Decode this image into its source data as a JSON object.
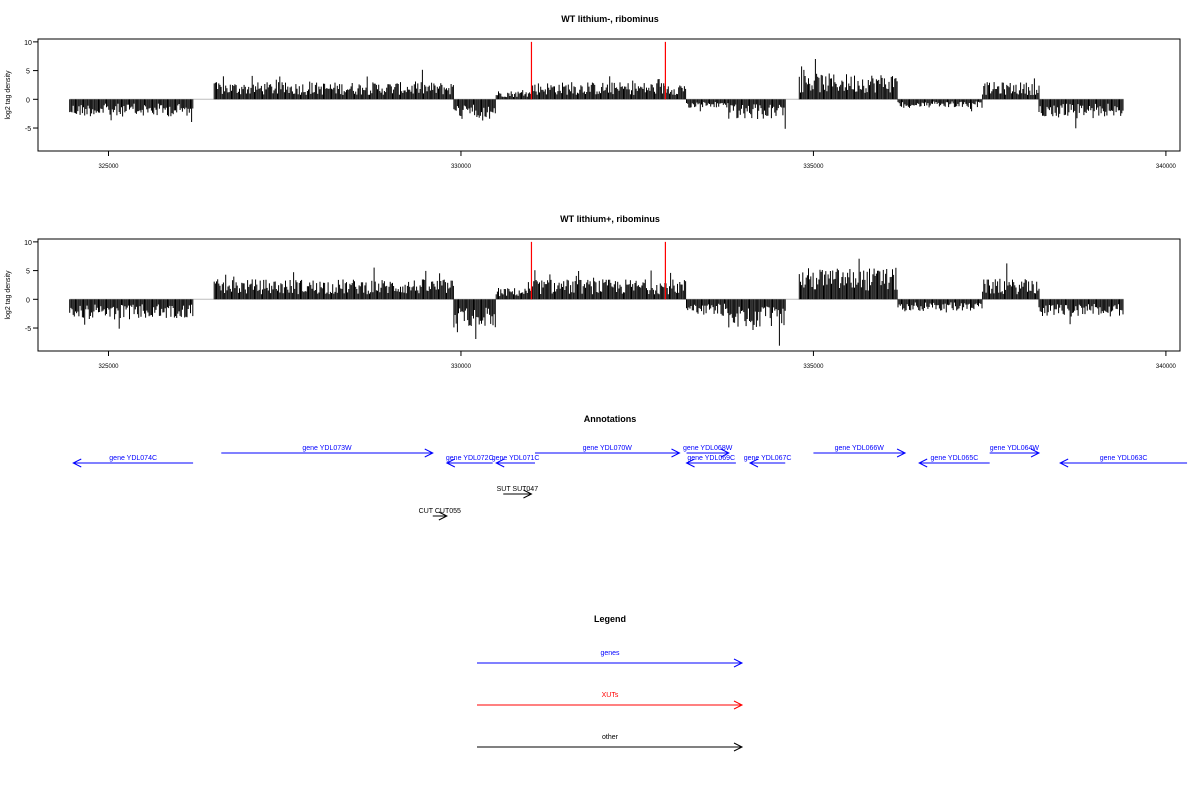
{
  "colors": {
    "genes": "#0000ff",
    "xuts": "#ff0000",
    "other": "#000000",
    "baseline": "#bebebe",
    "axis": "#000000"
  },
  "chart_data": [
    {
      "type": "bar",
      "title": "WT lithium-, ribominus",
      "ylabel": "log2 tag density",
      "xlabel": "",
      "xlim": [
        324000,
        340200
      ],
      "ylim": [
        -9,
        10.5
      ],
      "xticks": [
        325000,
        330000,
        335000,
        340000
      ],
      "yticks": [
        -5,
        0,
        5,
        10
      ],
      "data_range": [
        324450,
        339400
      ],
      "segments": [
        {
          "start": 324450,
          "end": 326200,
          "sign": -1,
          "amp": 3.0
        },
        {
          "start": 326500,
          "end": 329900,
          "sign": 1,
          "amp": 3.0
        },
        {
          "start": 329900,
          "end": 330500,
          "sign": -1,
          "amp": 3.5
        },
        {
          "start": 330500,
          "end": 331000,
          "sign": 1,
          "amp": 1.5
        },
        {
          "start": 331000,
          "end": 333200,
          "sign": 1,
          "amp": 3.0
        },
        {
          "start": 333200,
          "end": 333800,
          "sign": -1,
          "amp": 1.5
        },
        {
          "start": 333800,
          "end": 334600,
          "sign": -1,
          "amp": 3.5
        },
        {
          "start": 334800,
          "end": 336200,
          "sign": 1,
          "amp": 4.5
        },
        {
          "start": 336200,
          "end": 337400,
          "sign": -1,
          "amp": 1.5
        },
        {
          "start": 337400,
          "end": 338200,
          "sign": 1,
          "amp": 3.0
        },
        {
          "start": 338200,
          "end": 339400,
          "sign": -1,
          "amp": 3.0
        }
      ],
      "xut_markers": [
        331000,
        332900
      ],
      "marker_ylim": [
        0,
        10
      ]
    },
    {
      "type": "bar",
      "title": "WT lithium+, ribominus",
      "ylabel": "log2 tag density",
      "xlabel": "",
      "xlim": [
        324000,
        340200
      ],
      "ylim": [
        -9,
        10.5
      ],
      "xticks": [
        325000,
        330000,
        335000,
        340000
      ],
      "yticks": [
        -5,
        0,
        5,
        10
      ],
      "data_range": [
        324450,
        339400
      ],
      "segments": [
        {
          "start": 324450,
          "end": 326200,
          "sign": -1,
          "amp": 3.5
        },
        {
          "start": 326500,
          "end": 329900,
          "sign": 1,
          "amp": 3.5
        },
        {
          "start": 329900,
          "end": 330500,
          "sign": -1,
          "amp": 5.0
        },
        {
          "start": 330500,
          "end": 331000,
          "sign": 1,
          "amp": 2.0
        },
        {
          "start": 331000,
          "end": 333200,
          "sign": 1,
          "amp": 3.5
        },
        {
          "start": 333200,
          "end": 333800,
          "sign": -1,
          "amp": 3.0
        },
        {
          "start": 333800,
          "end": 334600,
          "sign": -1,
          "amp": 5.0
        },
        {
          "start": 334800,
          "end": 336200,
          "sign": 1,
          "amp": 5.5
        },
        {
          "start": 336200,
          "end": 337400,
          "sign": -1,
          "amp": 2.0
        },
        {
          "start": 337400,
          "end": 338200,
          "sign": 1,
          "amp": 3.5
        },
        {
          "start": 338200,
          "end": 339400,
          "sign": -1,
          "amp": 3.0
        }
      ],
      "xut_markers": [
        331000,
        332900
      ],
      "marker_ylim": [
        0,
        10
      ]
    }
  ],
  "annotations": {
    "title": "Annotations",
    "xlim": [
      324000,
      340200
    ],
    "features": [
      {
        "label": "gene YDL074C",
        "start": 324500,
        "end": 326200,
        "strand": "-",
        "category": "genes",
        "row": 2
      },
      {
        "label": "gene YDL073W",
        "start": 326600,
        "end": 329600,
        "strand": "+",
        "category": "genes",
        "row": 1
      },
      {
        "label": "gene YDL072C",
        "start": 329800,
        "end": 330450,
        "strand": "-",
        "category": "genes",
        "row": 2
      },
      {
        "label": "gene YDL071C",
        "start": 330500,
        "end": 331050,
        "strand": "-",
        "category": "genes",
        "row": 2
      },
      {
        "label": "gene YDL070W",
        "start": 331050,
        "end": 333100,
        "strand": "+",
        "category": "genes",
        "row": 1
      },
      {
        "label": "gene YDL068W",
        "start": 333200,
        "end": 333800,
        "strand": "+",
        "category": "genes",
        "row": 1
      },
      {
        "label": "gene YDL069C",
        "start": 333200,
        "end": 333900,
        "strand": "-",
        "category": "genes",
        "row": 2
      },
      {
        "label": "gene YDL067C",
        "start": 334100,
        "end": 334600,
        "strand": "-",
        "category": "genes",
        "row": 2
      },
      {
        "label": "gene YDL066W",
        "start": 335000,
        "end": 336300,
        "strand": "+",
        "category": "genes",
        "row": 1
      },
      {
        "label": "gene YDL065C",
        "start": 336500,
        "end": 337500,
        "strand": "-",
        "category": "genes",
        "row": 2
      },
      {
        "label": "gene YDL064W",
        "start": 337500,
        "end": 338200,
        "strand": "+",
        "category": "genes",
        "row": 1
      },
      {
        "label": "gene YDL063C",
        "start": 338500,
        "end": 340300,
        "strand": "-",
        "category": "genes",
        "row": 2
      },
      {
        "label": "SUT SUT047",
        "start": 330600,
        "end": 331000,
        "strand": "+",
        "category": "other",
        "row": 3
      },
      {
        "label": "CUT CUT055",
        "start": 329600,
        "end": 329800,
        "strand": "+",
        "category": "other",
        "row": 4
      }
    ]
  },
  "legend": {
    "title": "Legend",
    "items": [
      {
        "label": "genes",
        "category": "genes"
      },
      {
        "label": "XUTs",
        "category": "xuts"
      },
      {
        "label": "other",
        "category": "other"
      }
    ]
  }
}
